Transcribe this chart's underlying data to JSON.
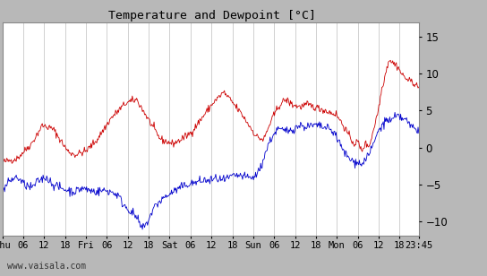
{
  "title": "Temperature and Dewpoint [°C]",
  "ylabel_right_ticks": [
    -10,
    -5,
    0,
    5,
    10,
    15
  ],
  "ylim": [
    -12,
    17
  ],
  "background_color": "#ffffff",
  "outer_background": "#b8b8b8",
  "grid_color": "#d0d0d0",
  "line_color_temp": "#cc0000",
  "line_color_dew": "#0000cc",
  "watermark": "www.vaisala.com",
  "n_points": 575,
  "temp_keypoints": [
    [
      0,
      -2
    ],
    [
      20,
      -1.5
    ],
    [
      40,
      0.5
    ],
    [
      55,
      3
    ],
    [
      70,
      2.5
    ],
    [
      90,
      -0.5
    ],
    [
      100,
      -1
    ],
    [
      115,
      -0.5
    ],
    [
      130,
      1
    ],
    [
      150,
      4
    ],
    [
      170,
      6
    ],
    [
      185,
      6.5
    ],
    [
      200,
      4
    ],
    [
      215,
      1.5
    ],
    [
      220,
      1
    ],
    [
      235,
      0.5
    ],
    [
      245,
      1
    ],
    [
      260,
      2
    ],
    [
      275,
      4
    ],
    [
      290,
      6
    ],
    [
      305,
      7.5
    ],
    [
      318,
      6
    ],
    [
      330,
      4.5
    ],
    [
      340,
      3
    ],
    [
      350,
      1.5
    ],
    [
      360,
      1
    ],
    [
      370,
      3.5
    ],
    [
      380,
      5.5
    ],
    [
      390,
      6.5
    ],
    [
      400,
      5.8
    ],
    [
      410,
      5.5
    ],
    [
      420,
      5.8
    ],
    [
      430,
      5.5
    ],
    [
      440,
      5.2
    ],
    [
      450,
      4.8
    ],
    [
      460,
      4.5
    ],
    [
      470,
      3
    ],
    [
      478,
      1.5
    ],
    [
      485,
      0.5
    ],
    [
      490,
      0.8
    ],
    [
      495,
      -0.5
    ],
    [
      500,
      0.5
    ],
    [
      505,
      0.2
    ],
    [
      508,
      1
    ],
    [
      513,
      3
    ],
    [
      518,
      5
    ],
    [
      523,
      8
    ],
    [
      528,
      10
    ],
    [
      533,
      12
    ],
    [
      538,
      11.5
    ],
    [
      545,
      11
    ],
    [
      550,
      10
    ],
    [
      555,
      9.5
    ],
    [
      560,
      9
    ],
    [
      565,
      9
    ],
    [
      570,
      8.5
    ],
    [
      574,
      8
    ]
  ],
  "dew_keypoints": [
    [
      0,
      -6
    ],
    [
      10,
      -4.5
    ],
    [
      20,
      -4
    ],
    [
      30,
      -5
    ],
    [
      40,
      -5.5
    ],
    [
      50,
      -4.5
    ],
    [
      60,
      -4
    ],
    [
      70,
      -5
    ],
    [
      80,
      -5.5
    ],
    [
      90,
      -5.8
    ],
    [
      100,
      -6
    ],
    [
      110,
      -5.5
    ],
    [
      120,
      -5.8
    ],
    [
      130,
      -6
    ],
    [
      140,
      -5.8
    ],
    [
      150,
      -6
    ],
    [
      160,
      -6.5
    ],
    [
      165,
      -7.5
    ],
    [
      175,
      -8.5
    ],
    [
      185,
      -9.5
    ],
    [
      192,
      -11
    ],
    [
      198,
      -10.5
    ],
    [
      205,
      -9
    ],
    [
      210,
      -8
    ],
    [
      215,
      -7.5
    ],
    [
      220,
      -7
    ],
    [
      228,
      -6.5
    ],
    [
      235,
      -6
    ],
    [
      245,
      -5.5
    ],
    [
      255,
      -5
    ],
    [
      265,
      -4.8
    ],
    [
      275,
      -4.5
    ],
    [
      285,
      -4.5
    ],
    [
      295,
      -4.2
    ],
    [
      305,
      -4.5
    ],
    [
      315,
      -4
    ],
    [
      325,
      -3.8
    ],
    [
      335,
      -4
    ],
    [
      345,
      -4.2
    ],
    [
      355,
      -3
    ],
    [
      365,
      0
    ],
    [
      372,
      1.5
    ],
    [
      380,
      2.5
    ],
    [
      390,
      2.2
    ],
    [
      400,
      2.5
    ],
    [
      410,
      3
    ],
    [
      420,
      2.8
    ],
    [
      430,
      3
    ],
    [
      440,
      2.8
    ],
    [
      450,
      2.5
    ],
    [
      458,
      2
    ],
    [
      465,
      0.5
    ],
    [
      470,
      -0.5
    ],
    [
      478,
      -1.5
    ],
    [
      485,
      -2
    ],
    [
      490,
      -1.8
    ],
    [
      495,
      -2.5
    ],
    [
      500,
      -1.5
    ],
    [
      505,
      -1
    ],
    [
      510,
      0
    ],
    [
      515,
      1.5
    ],
    [
      520,
      2.5
    ],
    [
      525,
      3.2
    ],
    [
      530,
      3.8
    ],
    [
      535,
      3.5
    ],
    [
      540,
      4
    ],
    [
      545,
      4.2
    ],
    [
      550,
      4
    ],
    [
      555,
      3.8
    ],
    [
      560,
      3.2
    ],
    [
      565,
      2.8
    ],
    [
      570,
      2.5
    ],
    [
      574,
      2.2
    ]
  ],
  "noise_seed": 42,
  "noise_temp": 0.25,
  "noise_dew": 0.3
}
